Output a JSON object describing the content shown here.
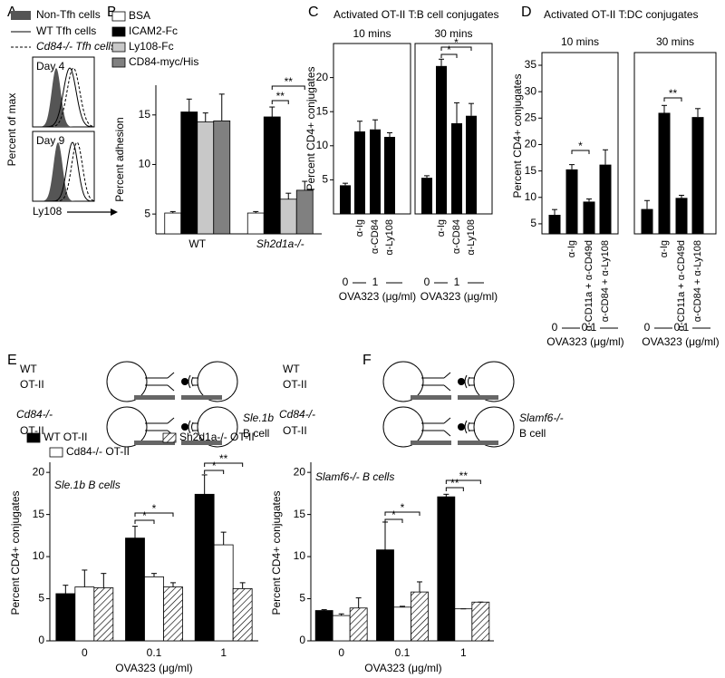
{
  "chart_data": [
    {
      "panel": "A",
      "type": "histogram-overlay",
      "ylabel": "Percent of max",
      "xlabel": "Ly108",
      "subpanels": [
        "Day 4",
        "Day 9"
      ],
      "series": [
        {
          "name": "Non-Tfh cells",
          "color": "#555555",
          "style": "filled"
        },
        {
          "name": "WT Tfh cells",
          "color": "#000000",
          "style": "solid"
        },
        {
          "name": "Cd84-/- Tfh cells",
          "color": "#000000",
          "style": "dashed"
        }
      ]
    },
    {
      "panel": "B",
      "type": "bar",
      "ylabel": "Percent adhesion",
      "categories": [
        "WT",
        "Sh2d1a-/-"
      ],
      "ylim": [
        3,
        18
      ],
      "yticks": [
        5,
        10,
        15
      ],
      "series": [
        {
          "name": "BSA",
          "color": "#ffffff",
          "values": [
            5.1,
            5.1
          ],
          "errors": [
            0.15,
            0.15
          ]
        },
        {
          "name": "ICAM2-Fc",
          "color": "#000000",
          "values": [
            15.3,
            14.8
          ],
          "errors": [
            1.3,
            1.0
          ]
        },
        {
          "name": "Ly108-Fc",
          "color": "#c8c8c8",
          "values": [
            14.3,
            6.5
          ],
          "errors": [
            0.9,
            0.6
          ]
        },
        {
          "name": "CD84-myc/His",
          "color": "#808080",
          "values": [
            14.4,
            7.4
          ],
          "errors": [
            2.7,
            0.9
          ]
        }
      ],
      "annotations": [
        "**",
        "**"
      ]
    },
    {
      "panel": "C",
      "type": "bar",
      "title": "Activated OT-II T:B cell conjugates",
      "ylabel": "Percent CD4+ conjugates",
      "ylim": [
        0,
        25
      ],
      "yticks": [
        5,
        10,
        15,
        20
      ],
      "color": "#000000",
      "dose_labels": [
        "0",
        "1"
      ],
      "xlabel": "OVA323 (μg/ml)",
      "subpanels": [
        {
          "title": "10 mins",
          "categories": [
            null,
            "α-Ig",
            "α-CD84",
            "α-Ly108"
          ],
          "values": [
            4.2,
            12.1,
            12.4,
            11.3
          ],
          "errors": [
            0.3,
            1.5,
            1.4,
            0.6
          ],
          "annotations": []
        },
        {
          "title": "30 mins",
          "categories": [
            null,
            "α-Ig",
            "α-CD84",
            "α-Ly108"
          ],
          "values": [
            5.3,
            21.7,
            13.3,
            14.4
          ],
          "errors": [
            0.3,
            1.0,
            3.0,
            1.8
          ],
          "annotations": [
            "*",
            "*"
          ]
        }
      ]
    },
    {
      "panel": "D",
      "type": "bar",
      "title": "Activated OT-II T:DC conjugates",
      "ylabel": "Percent CD4+ conjugates",
      "ylim": [
        3.1,
        37.4
      ],
      "yticks": [
        5,
        10,
        15,
        20,
        25,
        30,
        35
      ],
      "color": "#000000",
      "dose_labels": [
        "0",
        "0.1"
      ],
      "xlabel": "OVA323 (μg/ml)",
      "subpanels": [
        {
          "title": "10 mins",
          "categories": [
            null,
            "α-Ig",
            "α-CD11a + α-CD49d",
            "α-CD84 + α-Ly108"
          ],
          "values": [
            6.7,
            15.3,
            9.2,
            16.2
          ],
          "errors": [
            1.0,
            0.9,
            0.5,
            2.8
          ],
          "annotations": [
            "*"
          ]
        },
        {
          "title": "30 mins",
          "categories": [
            null,
            "α-Ig",
            "α-CD11a + α-CD49d",
            "α-CD84 + α-Ly108"
          ],
          "values": [
            7.8,
            26,
            9.9,
            25.2
          ],
          "errors": [
            1.6,
            1.4,
            0.5,
            1.6
          ],
          "annotations": [
            "**"
          ]
        }
      ]
    },
    {
      "panel": "E",
      "type": "bar",
      "ylabel": "Percent CD4+ conjugates",
      "xlabel": "OVA323 (μg/ml)",
      "inner_label": "Sle.1b B cells",
      "categories": [
        "0",
        "0.1",
        "1"
      ],
      "ylim": [
        0,
        21.2
      ],
      "yticks": [
        0,
        5,
        10,
        15,
        20
      ],
      "series": [
        {
          "name": "WT OT-II",
          "color": "#000000",
          "values": [
            5.6,
            12.2,
            17.4
          ],
          "errors": [
            1.0,
            1.4,
            2.3
          ]
        },
        {
          "name": "Cd84-/- OT-II",
          "color": "#ffffff",
          "values": [
            6.4,
            7.6,
            11.4
          ],
          "errors": [
            2.0,
            0.4,
            1.5
          ]
        },
        {
          "name": "Sh2d1a-/- OT-II",
          "color": "#000000",
          "pattern": "hatch",
          "values": [
            6.3,
            6.4,
            6.2
          ],
          "errors": [
            1.7,
            0.5,
            0.7
          ]
        }
      ],
      "annotations": [
        "*",
        "*",
        "*",
        "**"
      ],
      "schematic": {
        "t_cell_labels": [
          [
            "WT",
            "OT-II"
          ],
          [
            "Cd84-/-",
            "OT-II"
          ]
        ],
        "b_cell_label": [
          "Sle.1b",
          "B cell"
        ]
      }
    },
    {
      "panel": "F",
      "type": "bar",
      "ylabel": "Percent CD4+ conjugates",
      "xlabel": "OVA323 (μg/ml)",
      "inner_label": "Slamf6-/- B cells",
      "categories": [
        "0",
        "0.1",
        "1"
      ],
      "ylim": [
        0,
        21.2
      ],
      "yticks": [
        0,
        5,
        10,
        15,
        20
      ],
      "series": [
        {
          "color": "#000000",
          "values": [
            3.6,
            10.8,
            17.1
          ],
          "errors": [
            0.1,
            3.3,
            0.3
          ]
        },
        {
          "color": "#ffffff",
          "values": [
            3.0,
            4.0,
            3.8
          ],
          "errors": [
            0.2,
            0.1,
            0
          ]
        },
        {
          "color": "#000000",
          "pattern": "hatch",
          "values": [
            3.9,
            5.8,
            4.6
          ],
          "errors": [
            1.2,
            1.2,
            0
          ]
        }
      ],
      "annotations": [
        "*",
        "*",
        "**",
        "**"
      ],
      "schematic": {
        "t_cell_labels": [
          [
            "WT",
            "OT-II"
          ],
          [
            "Cd84-/-",
            "OT-II"
          ]
        ],
        "b_cell_label": [
          "Slamf6-/-",
          "B cell"
        ]
      }
    }
  ]
}
